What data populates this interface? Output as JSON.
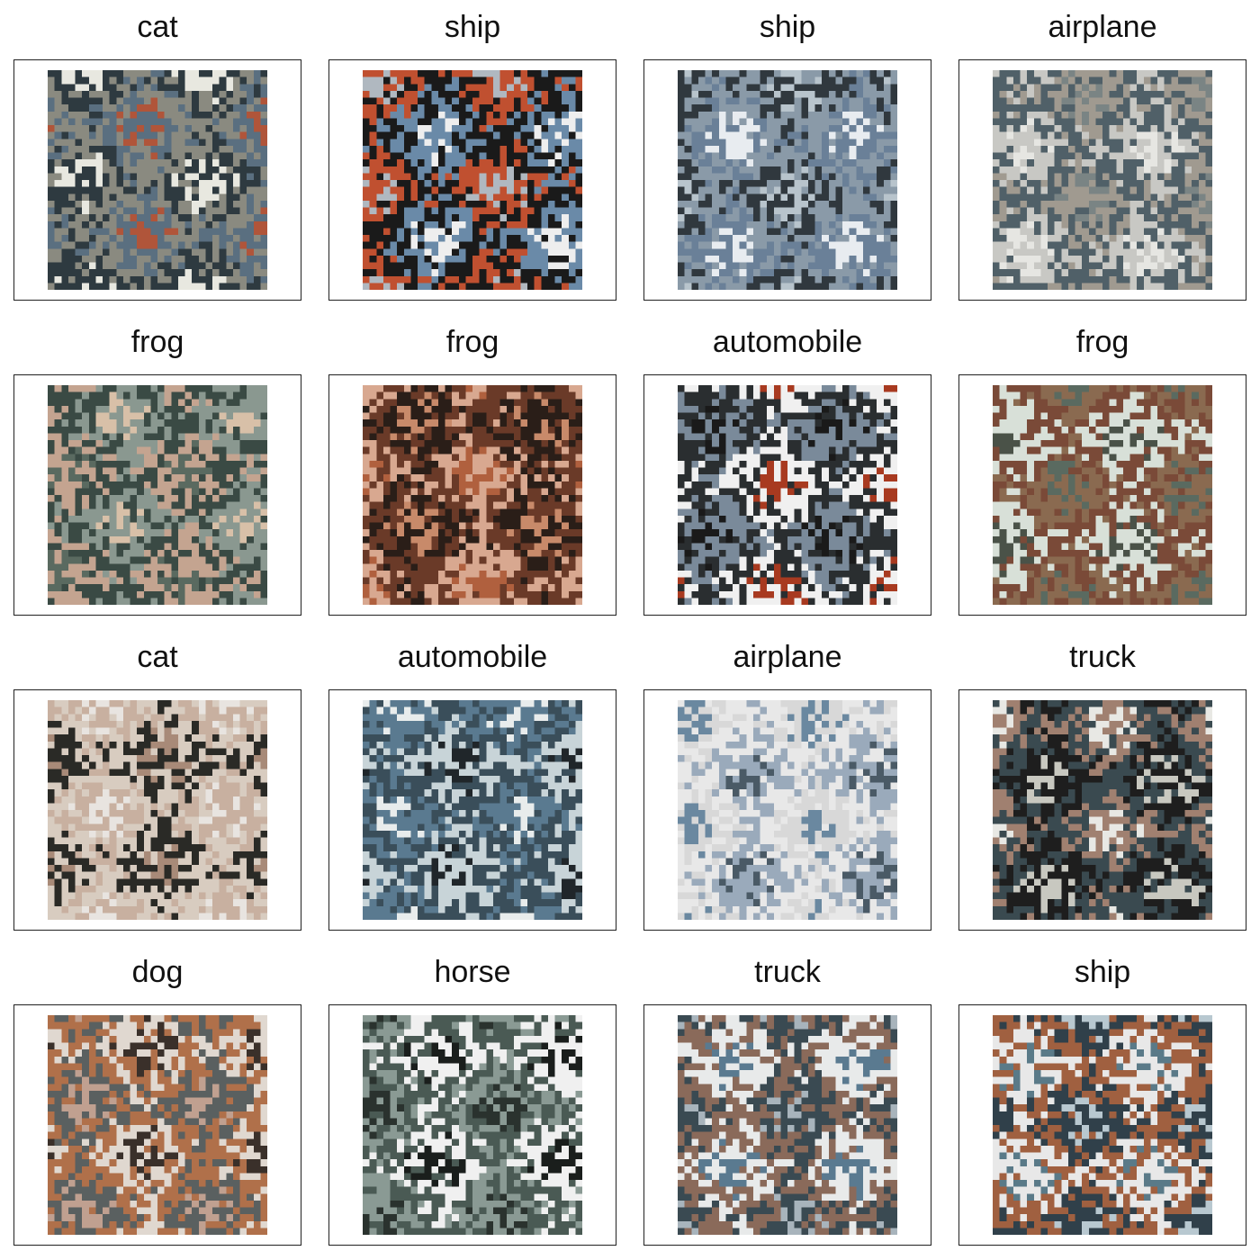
{
  "grid": {
    "rows": 4,
    "cols": 4,
    "items": [
      {
        "label": "cat",
        "image": "pixelated-cat-on-blue-surface",
        "palette": [
          "#b0553a",
          "#5a6f80",
          "#8a8a80",
          "#2e3a40",
          "#e8e8e0"
        ]
      },
      {
        "label": "ship",
        "image": "pixelated-white-ship-at-dock",
        "palette": [
          "#eeeeee",
          "#6a8aa8",
          "#1a1a1a",
          "#c05030",
          "#b0b8c0"
        ]
      },
      {
        "label": "ship",
        "image": "pixelated-grey-ship-on-water",
        "palette": [
          "#e8ecf0",
          "#6a8098",
          "#8a9aa8",
          "#30383e",
          "#b8c4cc"
        ]
      },
      {
        "label": "airplane",
        "image": "pixelated-concorde-airplane",
        "palette": [
          "#e6e6e2",
          "#c8c8c4",
          "#506068",
          "#a09a90",
          "#7a8484"
        ]
      },
      {
        "label": "frog",
        "image": "pixelated-frog-in-foliage",
        "palette": [
          "#5a6a60",
          "#c4a490",
          "#3a4a44",
          "#8a9890",
          "#d8c0a8"
        ]
      },
      {
        "label": "frog",
        "image": "pixelated-brown-frog",
        "palette": [
          "#b0603e",
          "#d8a890",
          "#6a3a28",
          "#2a1e18",
          "#c88a6a"
        ]
      },
      {
        "label": "automobile",
        "image": "pixelated-white-car-red-background",
        "palette": [
          "#a83a20",
          "#f0f0f0",
          "#2a2e30",
          "#7a8a9a",
          "#1a1a1a"
        ]
      },
      {
        "label": "frog",
        "image": "pixelated-blurry-frog",
        "palette": [
          "#5a6a60",
          "#8a6a50",
          "#7a4a38",
          "#d8e0d8",
          "#4a5248"
        ]
      },
      {
        "label": "cat",
        "image": "pixelated-pale-cat",
        "palette": [
          "#e8e4e0",
          "#c8b0a0",
          "#d8ccc0",
          "#2a2a26",
          "#a88a78"
        ]
      },
      {
        "label": "automobile",
        "image": "pixelated-blue-jeep",
        "palette": [
          "#e8ecec",
          "#5a7a90",
          "#3a4e5a",
          "#c8d4d8",
          "#20262a"
        ]
      },
      {
        "label": "airplane",
        "image": "pixelated-jet-blue-sky",
        "palette": [
          "#6a88a0",
          "#d8d8d8",
          "#e8e8e8",
          "#9aaabb",
          "#4a5a66"
        ]
      },
      {
        "label": "truck",
        "image": "pixelated-white-truck",
        "palette": [
          "#e8e8e4",
          "#a08070",
          "#3a4a50",
          "#1e1e1e",
          "#c8c8c0"
        ]
      },
      {
        "label": "dog",
        "image": "pixelated-white-dog",
        "palette": [
          "#3a302a",
          "#e0d8d0",
          "#b0704a",
          "#5a6060",
          "#c0a090"
        ]
      },
      {
        "label": "horse",
        "image": "pixelated-white-horse-dark-background",
        "palette": [
          "#1a1e1c",
          "#f0f0f0",
          "#4a5a54",
          "#8a9a94",
          "#2a322e"
        ]
      },
      {
        "label": "truck",
        "image": "pixelated-blue-dump-truck",
        "palette": [
          "#5a7a90",
          "#e8eaea",
          "#8a6a5a",
          "#3a4a52",
          "#a8b4bc"
        ]
      },
      {
        "label": "ship",
        "image": "pixelated-boat-on-water",
        "palette": [
          "#5a7a88",
          "#e8e8e8",
          "#a06040",
          "#30404a",
          "#b8c8d0"
        ]
      }
    ]
  }
}
